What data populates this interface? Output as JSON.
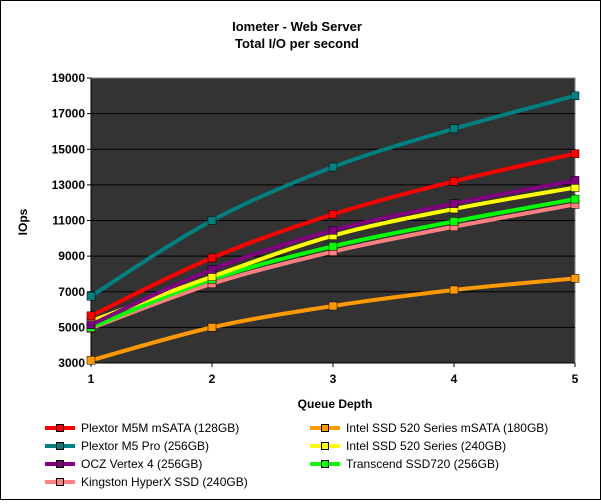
{
  "chart_data": {
    "type": "line",
    "title": "Iometer - Web Server",
    "subtitle": "Total I/O per second",
    "xlabel": "Queue Depth",
    "ylabel": "IOps",
    "x": [
      1,
      2,
      3,
      4,
      5
    ],
    "x_tick_labels": [
      "1",
      "2",
      "3",
      "4",
      "5"
    ],
    "ylim": [
      3000,
      19000
    ],
    "y_tick_labels": [
      "3000",
      "5000",
      "7000",
      "9000",
      "11000",
      "13000",
      "15000",
      "17000",
      "19000"
    ],
    "y_ticks": [
      3000,
      5000,
      7000,
      9000,
      11000,
      13000,
      15000,
      17000,
      19000
    ],
    "plot_background": "#333333",
    "gridlines": true,
    "legend_position": "bottom",
    "series": [
      {
        "name": "Plextor M5M mSATA (128GB)",
        "color": "#ff0000",
        "values": [
          5650,
          8900,
          11350,
          13200,
          14750
        ]
      },
      {
        "name": "Intel SSD 520 Series mSATA (180GB)",
        "color": "#ff9900",
        "values": [
          3150,
          5000,
          6200,
          7100,
          7750
        ]
      },
      {
        "name": "Plextor M5 Pro (256GB)",
        "color": "#008080",
        "values": [
          6750,
          11000,
          14000,
          16150,
          18000
        ]
      },
      {
        "name": "Intel SSD 520 Series (240GB)",
        "color": "#ffff00",
        "values": [
          5350,
          7850,
          10150,
          11650,
          12850
        ]
      },
      {
        "name": "OCZ Vertex 4 (256GB)",
        "color": "#800080",
        "values": [
          5150,
          8250,
          10450,
          11950,
          13250
        ]
      },
      {
        "name": "Transcend SSD720 (256GB)",
        "color": "#00ff00",
        "values": [
          5000,
          7700,
          9550,
          10950,
          12200
        ]
      },
      {
        "name": "Kingston HyperX SSD (240GB)",
        "color": "#ff8080",
        "values": [
          4950,
          7450,
          9250,
          10650,
          11900
        ]
      }
    ]
  }
}
